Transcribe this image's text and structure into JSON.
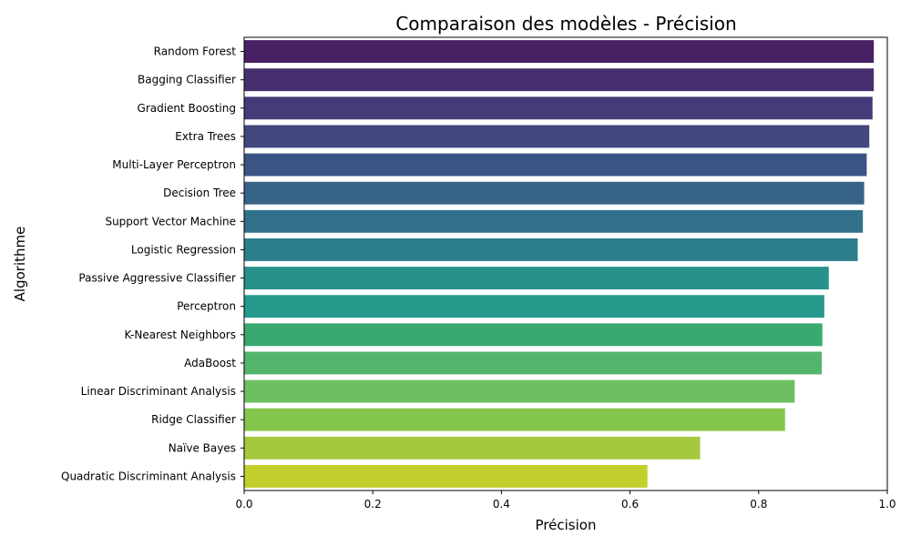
{
  "chart_data": {
    "type": "bar",
    "orientation": "horizontal",
    "title": "Comparaison des modèles - Précision",
    "xlabel": "Précision",
    "ylabel": "Algorithme",
    "xlim": [
      0,
      1.0
    ],
    "xticks": [
      "0.0",
      "0.2",
      "0.4",
      "0.6",
      "0.8",
      "1.0"
    ],
    "grid": false,
    "colormap": "viridis",
    "categories": [
      "Random Forest",
      "Bagging Classifier",
      "Gradient Boosting",
      "Extra Trees",
      "Multi-Layer Perceptron",
      "Decision Tree",
      "Support Vector Machine",
      "Logistic Regression",
      "Passive Aggressive Classifier",
      "Perceptron",
      "K-Nearest Neighbors",
      "AdaBoost",
      "Linear Discriminant Analysis",
      "Ridge Classifier",
      "Naïve Bayes",
      "Quadratic Discriminant Analysis"
    ],
    "values": [
      0.979,
      0.979,
      0.977,
      0.972,
      0.968,
      0.964,
      0.962,
      0.954,
      0.909,
      0.902,
      0.899,
      0.898,
      0.856,
      0.841,
      0.709,
      0.627
    ],
    "colors": [
      "#472163",
      "#472F6F",
      "#453B78",
      "#41487E",
      "#3C5483",
      "#376387",
      "#32718C",
      "#2D7E8C",
      "#28928A",
      "#27998A",
      "#39A871",
      "#53B46C",
      "#6DBF61",
      "#84C54B",
      "#A6C83F",
      "#C3CF2C"
    ]
  }
}
